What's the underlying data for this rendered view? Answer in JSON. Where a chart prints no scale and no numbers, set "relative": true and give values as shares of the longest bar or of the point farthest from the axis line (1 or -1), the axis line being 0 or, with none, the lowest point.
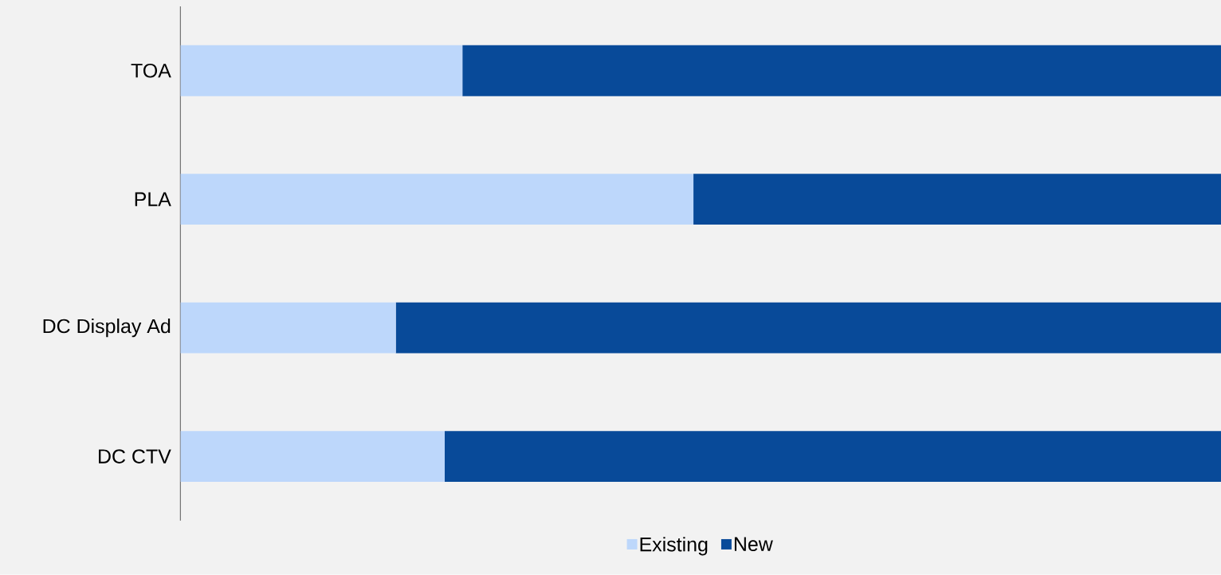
{
  "chart_data": {
    "type": "bar",
    "orientation": "horizontal",
    "stacked": true,
    "relative": true,
    "legend": "bottom",
    "categories": [
      "TOA",
      "PLA",
      "DC Display Ad",
      "DC CTV"
    ],
    "series": [
      {
        "name": "Existing",
        "color": "#bdd7fb",
        "values": [
          0.271,
          0.493,
          0.207,
          0.254
        ]
      },
      {
        "name": "New",
        "color": "#084a99",
        "values": [
          0.729,
          0.507,
          0.793,
          0.746
        ]
      }
    ]
  }
}
